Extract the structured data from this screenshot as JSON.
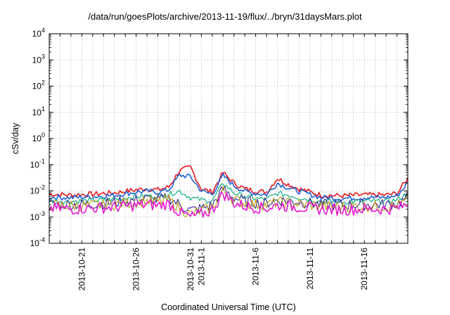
{
  "title": "/data/run/goesPlots/archive/2013-11-19/flux/../bryn/31daysMars.plot",
  "chart_data": {
    "type": "line",
    "title": "/data/run/goesPlots/archive/2013-11-19/flux/../bryn/31daysMars.plot",
    "xlabel": "Coordinated Universal Time (UTC)",
    "ylabel": "cSv/day",
    "y_scale": "log",
    "ylim": [
      0.0001,
      10000
    ],
    "xlim": [
      "2013-10-18",
      "2013-11-20"
    ],
    "grid": true,
    "legend": "none",
    "y_ticks": [
      {
        "value": 0.0001,
        "base": "10",
        "exp": "-4"
      },
      {
        "value": 0.001,
        "base": "10",
        "exp": "-3"
      },
      {
        "value": 0.01,
        "base": "10",
        "exp": "-2"
      },
      {
        "value": 0.1,
        "base": "10",
        "exp": "-1"
      },
      {
        "value": 1,
        "base": "10",
        "exp": "0"
      },
      {
        "value": 10,
        "base": "10",
        "exp": "1"
      },
      {
        "value": 100,
        "base": "10",
        "exp": "2"
      },
      {
        "value": 1000,
        "base": "10",
        "exp": "3"
      },
      {
        "value": 10000,
        "base": "10",
        "exp": "4"
      }
    ],
    "x_ticks": [
      {
        "date": "2013-10-21",
        "label": "2013-10-21"
      },
      {
        "date": "2013-10-26",
        "label": "2013-10-26"
      },
      {
        "date": "2013-10-31",
        "label": "2013-10-31"
      },
      {
        "date": "2013-11-01",
        "label": "2013-11-1"
      },
      {
        "date": "2013-11-06",
        "label": "2013-11-6"
      },
      {
        "date": "2013-11-11",
        "label": "2013-11-11"
      },
      {
        "date": "2013-11-16",
        "label": "2013-11-16"
      }
    ],
    "series": [
      {
        "color": "#e8171c",
        "width": 1.6,
        "x": [
          "2013-10-18",
          "2013-10-20",
          "2013-10-22",
          "2013-10-24",
          "2013-10-26",
          "2013-10-27",
          "2013-10-28",
          "2013-10-29",
          "2013-10-30",
          "2013-10-31",
          "2013-11-01",
          "2013-11-02",
          "2013-11-03",
          "2013-11-04",
          "2013-11-05",
          "2013-11-06",
          "2013-11-07",
          "2013-11-08",
          "2013-11-09",
          "2013-11-10",
          "2013-11-12",
          "2013-11-14",
          "2013-11-16",
          "2013-11-18",
          "2013-11-19",
          "2013-11-20"
        ],
        "y": [
          0.0075,
          0.007,
          0.0075,
          0.0085,
          0.011,
          0.012,
          0.011,
          0.014,
          0.06,
          0.08,
          0.012,
          0.009,
          0.05,
          0.02,
          0.012,
          0.01,
          0.009,
          0.03,
          0.018,
          0.012,
          0.007,
          0.0065,
          0.007,
          0.007,
          0.008,
          0.03
        ]
      },
      {
        "color": "#1f5fd6",
        "width": 1.6,
        "x": [
          "2013-10-18",
          "2013-10-20",
          "2013-10-22",
          "2013-10-24",
          "2013-10-26",
          "2013-10-27",
          "2013-10-28",
          "2013-10-29",
          "2013-10-30",
          "2013-10-31",
          "2013-11-01",
          "2013-11-02",
          "2013-11-03",
          "2013-11-04",
          "2013-11-05",
          "2013-11-06",
          "2013-11-07",
          "2013-11-08",
          "2013-11-09",
          "2013-11-10",
          "2013-11-12",
          "2013-11-14",
          "2013-11-16",
          "2013-11-18",
          "2013-11-19",
          "2013-11-20"
        ],
        "y": [
          0.0058,
          0.0055,
          0.006,
          0.0068,
          0.009,
          0.0098,
          0.009,
          0.011,
          0.04,
          0.035,
          0.01,
          0.0075,
          0.038,
          0.016,
          0.0095,
          0.008,
          0.0072,
          0.02,
          0.013,
          0.0095,
          0.0056,
          0.0052,
          0.0056,
          0.0056,
          0.0065,
          0.02
        ]
      },
      {
        "color": "#21b28c",
        "width": 1.3,
        "x": [
          "2013-10-18",
          "2013-10-20",
          "2013-10-22",
          "2013-10-24",
          "2013-10-26",
          "2013-10-27",
          "2013-10-28",
          "2013-10-29",
          "2013-10-30",
          "2013-10-31",
          "2013-11-01",
          "2013-11-02",
          "2013-11-03",
          "2013-11-04",
          "2013-11-05",
          "2013-11-06",
          "2013-11-07",
          "2013-11-08",
          "2013-11-09",
          "2013-11-10",
          "2013-11-12",
          "2013-11-14",
          "2013-11-16",
          "2013-11-18",
          "2013-11-19",
          "2013-11-20"
        ],
        "y": [
          0.0042,
          0.004,
          0.0043,
          0.0048,
          0.006,
          0.0065,
          0.006,
          0.0075,
          0.01,
          0.0055,
          0.0045,
          0.0042,
          0.02,
          0.0085,
          0.006,
          0.0052,
          0.0048,
          0.008,
          0.007,
          0.0055,
          0.004,
          0.0038,
          0.004,
          0.004,
          0.0045,
          0.0085
        ]
      },
      {
        "color": "#3a2a8a",
        "width": 1.1,
        "x": [
          "2013-10-18",
          "2013-10-20",
          "2013-10-22",
          "2013-10-24",
          "2013-10-26",
          "2013-10-27",
          "2013-10-28",
          "2013-10-29",
          "2013-10-30",
          "2013-10-31",
          "2013-11-01",
          "2013-11-02",
          "2013-11-03",
          "2013-11-04",
          "2013-11-05",
          "2013-11-06",
          "2013-11-07",
          "2013-11-08",
          "2013-11-09",
          "2013-11-10",
          "2013-11-12",
          "2013-11-14",
          "2013-11-16",
          "2013-11-18",
          "2013-11-19",
          "2013-11-20"
        ],
        "y": [
          0.0032,
          0.003,
          0.0032,
          0.0036,
          0.0045,
          0.005,
          0.0045,
          0.0055,
          0.003,
          0.0018,
          0.0022,
          0.0028,
          0.012,
          0.0055,
          0.004,
          0.0036,
          0.0034,
          0.0045,
          0.0042,
          0.0038,
          0.003,
          0.0029,
          0.003,
          0.003,
          0.0033,
          0.005
        ]
      },
      {
        "color": "#b8a01a",
        "width": 1.1,
        "x": [
          "2013-10-18",
          "2013-10-20",
          "2013-10-22",
          "2013-10-24",
          "2013-10-26",
          "2013-10-27",
          "2013-10-28",
          "2013-10-29",
          "2013-10-30",
          "2013-10-31",
          "2013-11-01",
          "2013-11-02",
          "2013-11-03",
          "2013-11-04",
          "2013-11-05",
          "2013-11-06",
          "2013-11-07",
          "2013-11-08",
          "2013-11-09",
          "2013-11-10",
          "2013-11-12",
          "2013-11-14",
          "2013-11-16",
          "2013-11-18",
          "2013-11-19",
          "2013-11-20"
        ],
        "y": [
          0.0028,
          0.0027,
          0.0028,
          0.0031,
          0.0038,
          0.0042,
          0.0038,
          0.0045,
          0.0022,
          0.0013,
          0.0017,
          0.0024,
          0.01,
          0.0046,
          0.0034,
          0.0031,
          0.0029,
          0.0037,
          0.0035,
          0.0032,
          0.0026,
          0.0025,
          0.0026,
          0.0026,
          0.0028,
          0.004
        ]
      },
      {
        "color": "#e619d0",
        "width": 1.6,
        "x": [
          "2013-10-18",
          "2013-10-20",
          "2013-10-22",
          "2013-10-24",
          "2013-10-26",
          "2013-10-27",
          "2013-10-28",
          "2013-10-29",
          "2013-10-30",
          "2013-10-31",
          "2013-11-01",
          "2013-11-02",
          "2013-11-03",
          "2013-11-04",
          "2013-11-05",
          "2013-11-06",
          "2013-11-07",
          "2013-11-08",
          "2013-11-09",
          "2013-11-10",
          "2013-11-12",
          "2013-11-14",
          "2013-11-16",
          "2013-11-18",
          "2013-11-19",
          "2013-11-20"
        ],
        "y": [
          0.0022,
          0.002,
          0.0022,
          0.0024,
          0.0028,
          0.003,
          0.0028,
          0.0032,
          0.0015,
          0.001,
          0.0013,
          0.0018,
          0.008,
          0.0035,
          0.0026,
          0.0023,
          0.0022,
          0.0028,
          0.0026,
          0.0024,
          0.002,
          0.0019,
          0.002,
          0.002,
          0.0022,
          0.003
        ]
      }
    ]
  }
}
